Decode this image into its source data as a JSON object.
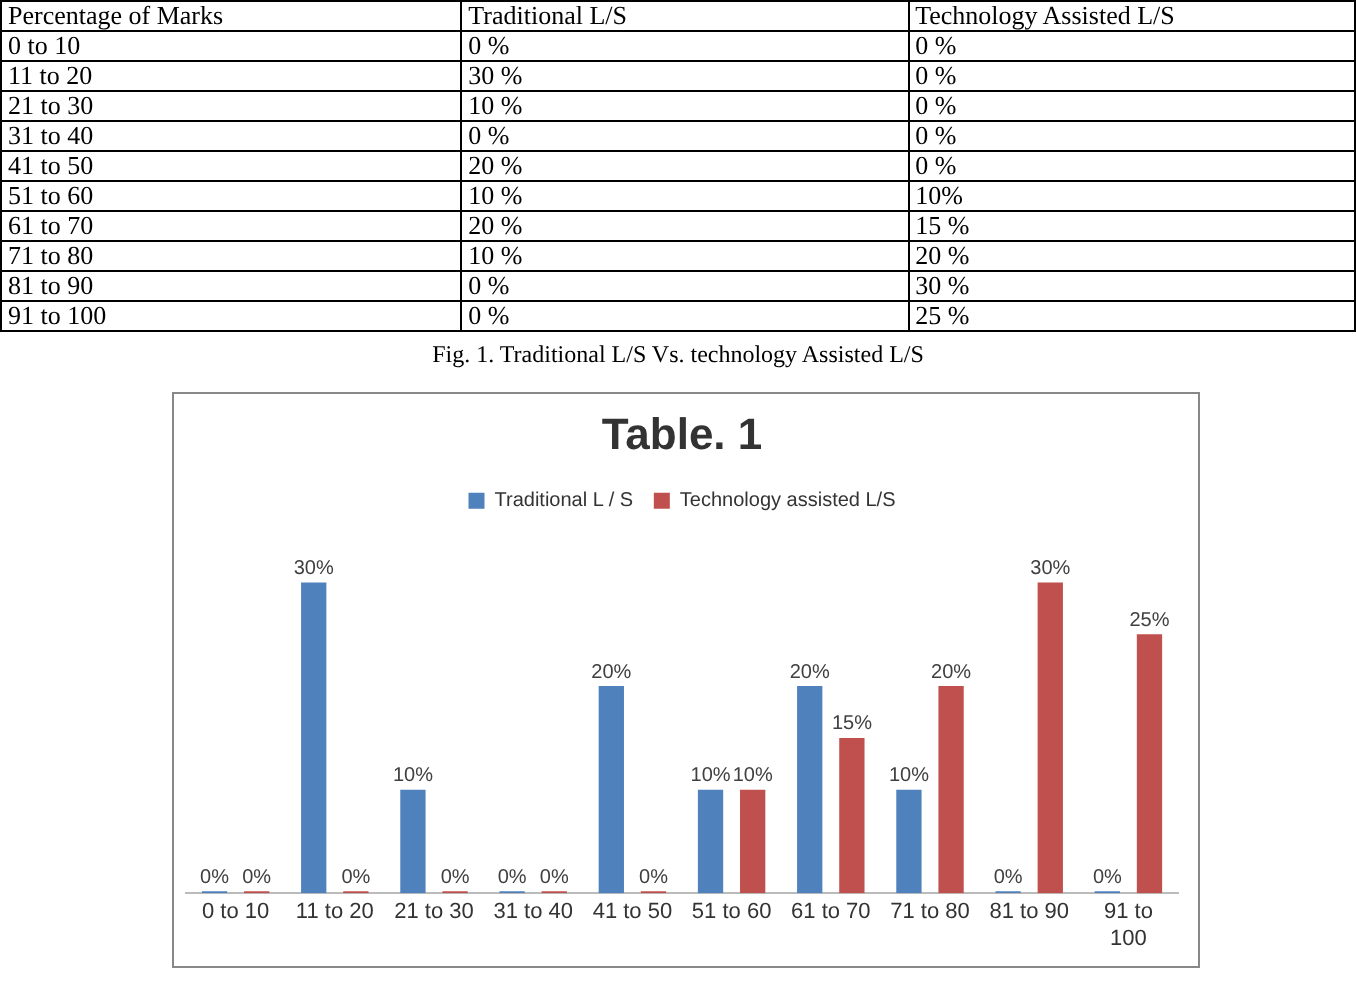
{
  "chart_data": {
    "type": "bar",
    "title": "Table. 1",
    "categories": [
      "0 to 10",
      "11 to 20",
      "21 to 30",
      "31 to 40",
      "41 to 50",
      "51 to 60",
      "61 to 70",
      "71 to 80",
      "81 to 90",
      "91 to 100"
    ],
    "series": [
      {
        "name": "Traditional L / S",
        "color": "#4f81bd",
        "values": [
          0,
          30,
          10,
          0,
          20,
          10,
          20,
          10,
          0,
          0
        ],
        "value_labels": [
          "0%",
          "30%",
          "10%",
          "0%",
          "20%",
          "10%",
          "20%",
          "10%",
          "0%",
          "0%"
        ]
      },
      {
        "name": "Technology assisted L/S",
        "color": "#c0504d",
        "values": [
          0,
          0,
          0,
          0,
          0,
          10,
          15,
          20,
          30,
          25
        ],
        "value_labels": [
          "0%",
          "0%",
          "0%",
          "0%",
          "0%",
          "10%",
          "15%",
          "20%",
          "30%",
          "25%"
        ]
      }
    ],
    "legend": "top",
    "grid": false,
    "tick_labels": "x",
    "annotations": [
      "Percentage of Marks",
      "Traditional L/S",
      "Technology Assisted L/S",
      "0 to 10",
      "0 %",
      "0 %",
      "11 to 20",
      "30 %",
      "0 %",
      "21 to 30",
      "10 %",
      "0 %",
      "31 to 40",
      "0 %",
      "0 %",
      "41 to 50",
      "20 %",
      "0 %",
      "51 to 60",
      "10 %",
      "10%",
      "61 to 70",
      "20 %",
      "15 %",
      "71 to 80",
      "10 %",
      "20 %",
      "81 to 90",
      "0 %",
      "30 %",
      "91 to 100",
      "0 %",
      "25 %",
      "Fig. 1.  Traditional L/S  Vs. technology Assisted L/S"
    ]
  }
}
